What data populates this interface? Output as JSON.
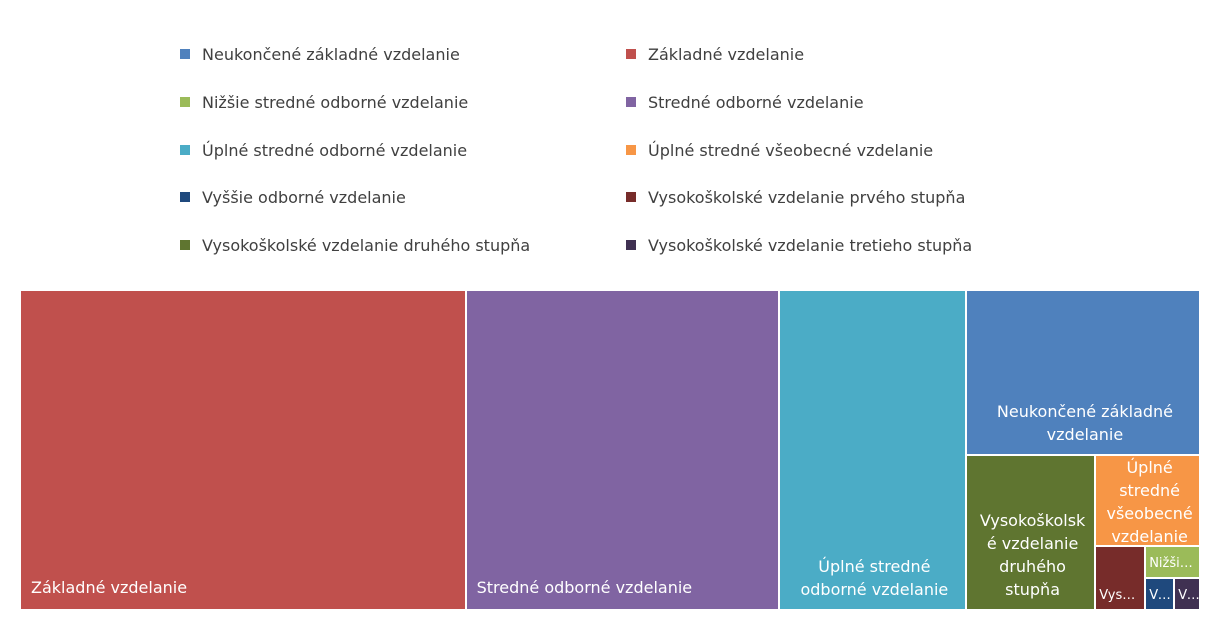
{
  "chart_data": {
    "type": "treemap",
    "series": [
      {
        "name": "Neukončené základné vzdelanie",
        "color": "#4f81bd",
        "value": 374
      },
      {
        "name": "Základné vzdelanie",
        "color": "#c0504d",
        "value": 1384
      },
      {
        "name": "Nižšie stredné odborné vzdelanie",
        "color": "#9bbb59",
        "value": 17
      },
      {
        "name": "Stredné odborné vzdelanie",
        "color": "#8064a2",
        "value": 973
      },
      {
        "name": "Úplné stredné odborné vzdelanie",
        "color": "#4bacc6",
        "value": 581
      },
      {
        "name": "Úplné stredné všeobecné vzdelanie",
        "color": "#f79646",
        "value": 93
      },
      {
        "name": "Vyššie odborné vzdelanie",
        "color": "#1f497d",
        "value": 9
      },
      {
        "name": "Vysokoškolské vzdelanie prvého stupňa",
        "color": "#772c2a",
        "value": 31
      },
      {
        "name": "Vysokoškolské vzdelanie druhého stupňa",
        "color": "#5f7530",
        "value": 195
      },
      {
        "name": "Vysokoškolské vzdelanie tretieho stupňa",
        "color": "#403152",
        "value": 8
      }
    ]
  }
}
